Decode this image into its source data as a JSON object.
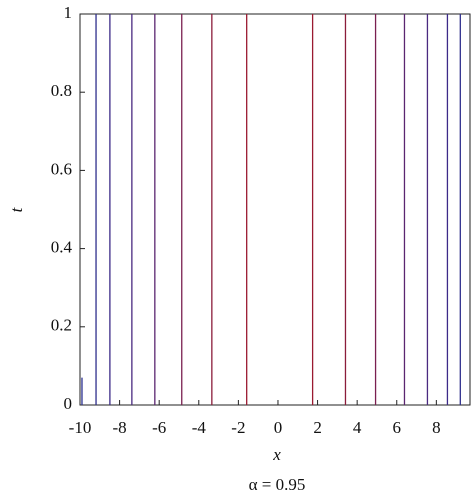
{
  "chart_data": {
    "type": "contour",
    "x_label": "x",
    "y_label": "t",
    "caption": "α = 0.95",
    "xlim": [
      -10,
      9.7
    ],
    "ylim": [
      0,
      1
    ],
    "xticks": [
      -10,
      -8,
      -6,
      -4,
      -2,
      0,
      2,
      4,
      6,
      8
    ],
    "yticks": [
      0,
      0.2,
      0.4,
      0.6,
      0.8,
      1
    ],
    "lines": [
      {
        "x": -9.9,
        "t": [
          0,
          0.07
        ],
        "color": "#2a2e90"
      },
      {
        "x": -9.19,
        "t": [
          0,
          1
        ],
        "color": "#2e2e8c"
      },
      {
        "x": -8.49,
        "t": [
          0,
          1
        ],
        "color": "#3c2a88"
      },
      {
        "x": -7.38,
        "t": [
          0,
          1
        ],
        "color": "#4a2a80"
      },
      {
        "x": -6.22,
        "t": [
          0,
          1
        ],
        "color": "#5a2570"
      },
      {
        "x": -4.86,
        "t": [
          0,
          1
        ],
        "color": "#7a1f50"
      },
      {
        "x": -3.34,
        "t": [
          0,
          1
        ],
        "color": "#8b1c3a"
      },
      {
        "x": -1.58,
        "t": [
          0,
          1
        ],
        "color": "#9a1a30"
      },
      {
        "x": 1.75,
        "t": [
          0,
          1
        ],
        "color": "#9a1a30"
      },
      {
        "x": 3.41,
        "t": [
          0,
          1
        ],
        "color": "#8b1c3a"
      },
      {
        "x": 4.93,
        "t": [
          0,
          1
        ],
        "color": "#7a1f50"
      },
      {
        "x": 6.39,
        "t": [
          0,
          1
        ],
        "color": "#5a2570"
      },
      {
        "x": 7.55,
        "t": [
          0,
          1
        ],
        "color": "#4a2a80"
      },
      {
        "x": 8.56,
        "t": [
          0,
          1
        ],
        "color": "#3c2a88"
      },
      {
        "x": 9.21,
        "t": [
          0,
          1
        ],
        "color": "#2e2e8c"
      }
    ]
  }
}
